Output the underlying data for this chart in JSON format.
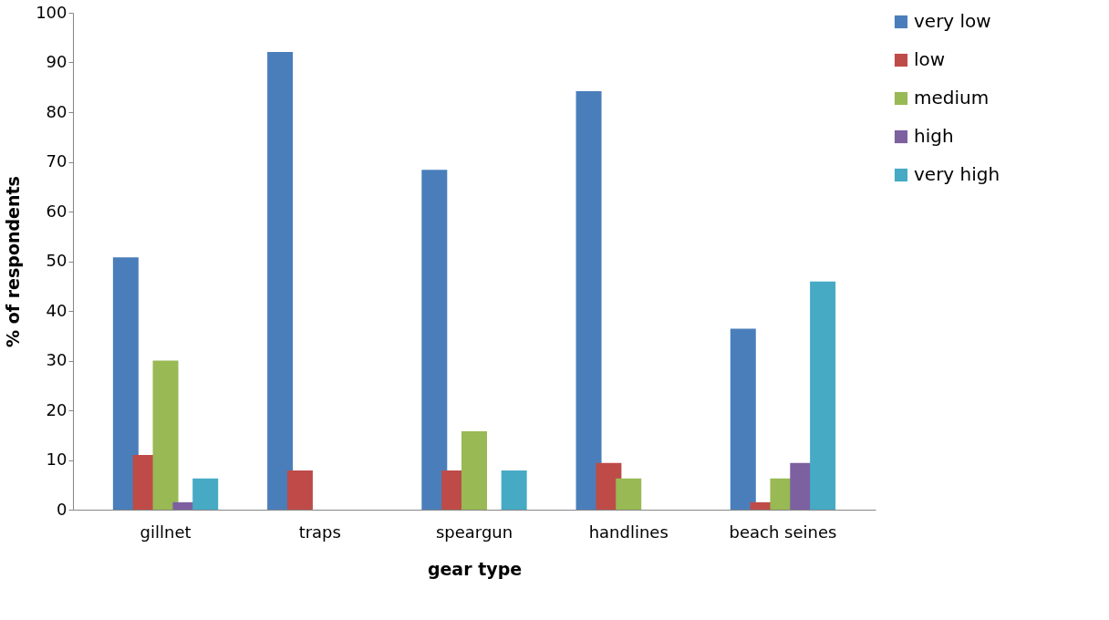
{
  "chart_data": {
    "type": "bar",
    "xlabel": "gear type",
    "ylabel": "% of respondents",
    "categories": [
      "gillnet",
      "traps",
      "speargun",
      "handlines",
      "beach seines"
    ],
    "series": [
      {
        "name": "very low",
        "color": "#4a7ebb",
        "values": [
          50.8,
          92.1,
          68.4,
          84.2,
          36.4
        ]
      },
      {
        "name": "low",
        "color": "#be4b48",
        "values": [
          11.0,
          7.9,
          7.9,
          9.4,
          1.5
        ]
      },
      {
        "name": "medium",
        "color": "#98b954",
        "values": [
          30.0,
          0,
          15.8,
          6.3,
          6.3
        ]
      },
      {
        "name": "high",
        "color": "#7d60a0",
        "values": [
          1.5,
          0,
          0,
          0,
          9.4
        ]
      },
      {
        "name": "very high",
        "color": "#46aac5",
        "values": [
          6.3,
          0,
          7.9,
          0,
          45.9
        ]
      }
    ],
    "ylim": [
      0,
      100
    ],
    "yticks": [
      0,
      10,
      20,
      30,
      40,
      50,
      60,
      70,
      80,
      90,
      100
    ],
    "grid": false,
    "legend": "right"
  }
}
